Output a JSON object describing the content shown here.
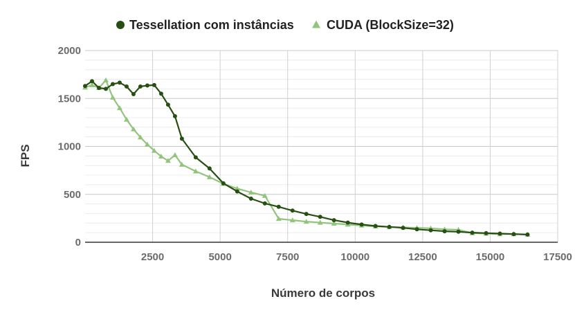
{
  "chart_data": {
    "type": "line",
    "title": "",
    "xlabel": "Número de corpos",
    "ylabel": "FPS",
    "xlim": [
      0,
      17500
    ],
    "ylim": [
      0,
      2000
    ],
    "x_ticks": [
      2500,
      5000,
      7500,
      10000,
      12500,
      15000,
      17500
    ],
    "x_tick_labels": [
      "2500",
      "5000",
      "7500",
      "10000",
      "12500",
      "15000",
      "17500"
    ],
    "y_ticks": [
      0,
      500,
      1000,
      1500,
      2000
    ],
    "y_tick_labels": [
      "0",
      "500",
      "1000",
      "1500",
      "2000"
    ],
    "grid": true,
    "legend_position": "top",
    "series": [
      {
        "name": "Tessellation com instâncias",
        "color": "#274e13",
        "marker": "circle",
        "points": [
          [
            0,
            1630
          ],
          [
            256,
            1680
          ],
          [
            512,
            1610
          ],
          [
            768,
            1600
          ],
          [
            1024,
            1650
          ],
          [
            1280,
            1665
          ],
          [
            1536,
            1625
          ],
          [
            1792,
            1545
          ],
          [
            2048,
            1625
          ],
          [
            2304,
            1635
          ],
          [
            2560,
            1640
          ],
          [
            2816,
            1550
          ],
          [
            3072,
            1435
          ],
          [
            3328,
            1315
          ],
          [
            3584,
            1080
          ],
          [
            4096,
            885
          ],
          [
            4608,
            770
          ],
          [
            5120,
            615
          ],
          [
            5632,
            530
          ],
          [
            6144,
            455
          ],
          [
            6656,
            405
          ],
          [
            7168,
            370
          ],
          [
            7680,
            330
          ],
          [
            8192,
            295
          ],
          [
            8704,
            265
          ],
          [
            9216,
            230
          ],
          [
            9728,
            205
          ],
          [
            10240,
            185
          ],
          [
            10752,
            170
          ],
          [
            11264,
            160
          ],
          [
            11776,
            150
          ],
          [
            12288,
            135
          ],
          [
            12800,
            125
          ],
          [
            13312,
            115
          ],
          [
            13824,
            110
          ],
          [
            14336,
            100
          ],
          [
            14848,
            95
          ],
          [
            15360,
            90
          ],
          [
            15872,
            85
          ],
          [
            16384,
            80
          ]
        ]
      },
      {
        "name": "CUDA (BlockSize=32)",
        "color": "#93c47d",
        "marker": "triangle",
        "points": [
          [
            0,
            1615
          ],
          [
            256,
            1640
          ],
          [
            512,
            1610
          ],
          [
            768,
            1690
          ],
          [
            1024,
            1510
          ],
          [
            1280,
            1400
          ],
          [
            1536,
            1280
          ],
          [
            1792,
            1180
          ],
          [
            2048,
            1095
          ],
          [
            2304,
            1020
          ],
          [
            2560,
            955
          ],
          [
            2816,
            895
          ],
          [
            3072,
            850
          ],
          [
            3328,
            910
          ],
          [
            3584,
            810
          ],
          [
            4096,
            740
          ],
          [
            4608,
            680
          ],
          [
            5120,
            610
          ],
          [
            5632,
            560
          ],
          [
            6144,
            520
          ],
          [
            6656,
            485
          ],
          [
            7168,
            245
          ],
          [
            7680,
            230
          ],
          [
            8192,
            215
          ],
          [
            8704,
            205
          ],
          [
            9216,
            195
          ],
          [
            9728,
            185
          ],
          [
            10240,
            175
          ],
          [
            10752,
            165
          ],
          [
            11264,
            160
          ],
          [
            11776,
            155
          ],
          [
            12288,
            150
          ],
          [
            12800,
            145
          ],
          [
            13312,
            135
          ],
          [
            13824,
            130
          ],
          [
            14336,
            95
          ],
          [
            14848,
            90
          ],
          [
            15360,
            85
          ],
          [
            15872,
            85
          ],
          [
            16384,
            80
          ]
        ]
      }
    ]
  }
}
